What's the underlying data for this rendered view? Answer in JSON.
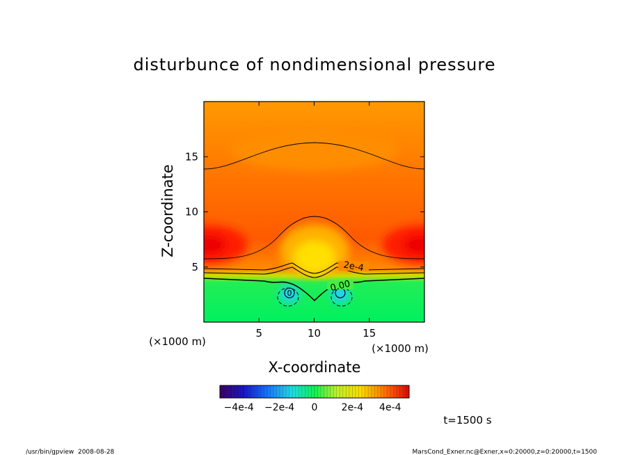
{
  "chart_data": {
    "type": "heatmap",
    "title": "disturbunce of nondimensional pressure",
    "xlabel": "X-coordinate",
    "ylabel": "Z-coordinate",
    "x_units": "(×1000 m)",
    "z_units": "(×1000 m)",
    "x_range": [
      0,
      20
    ],
    "z_range": [
      0,
      20
    ],
    "x_ticks": [
      5,
      10,
      15
    ],
    "x_tick_labels": [
      "5",
      "10",
      "15"
    ],
    "z_ticks": [
      5,
      10,
      15
    ],
    "z_tick_labels": [
      "5",
      "10",
      "15"
    ],
    "contour_labels": [
      "2e-4",
      "0.00",
      "0"
    ],
    "colorbar": {
      "min": -0.0005,
      "max": 0.0005,
      "tick_labels": [
        "−4e-4",
        "−2e-4",
        "0",
        "2e-4",
        "4e-4"
      ]
    },
    "time_label": "t=1500 s",
    "footer_left": "/usr/bin/gpview  2008-08-28",
    "footer_right": "MarsCond_Exner.nc@Exner,x=0:20000,z=0:20000,t=1500"
  }
}
